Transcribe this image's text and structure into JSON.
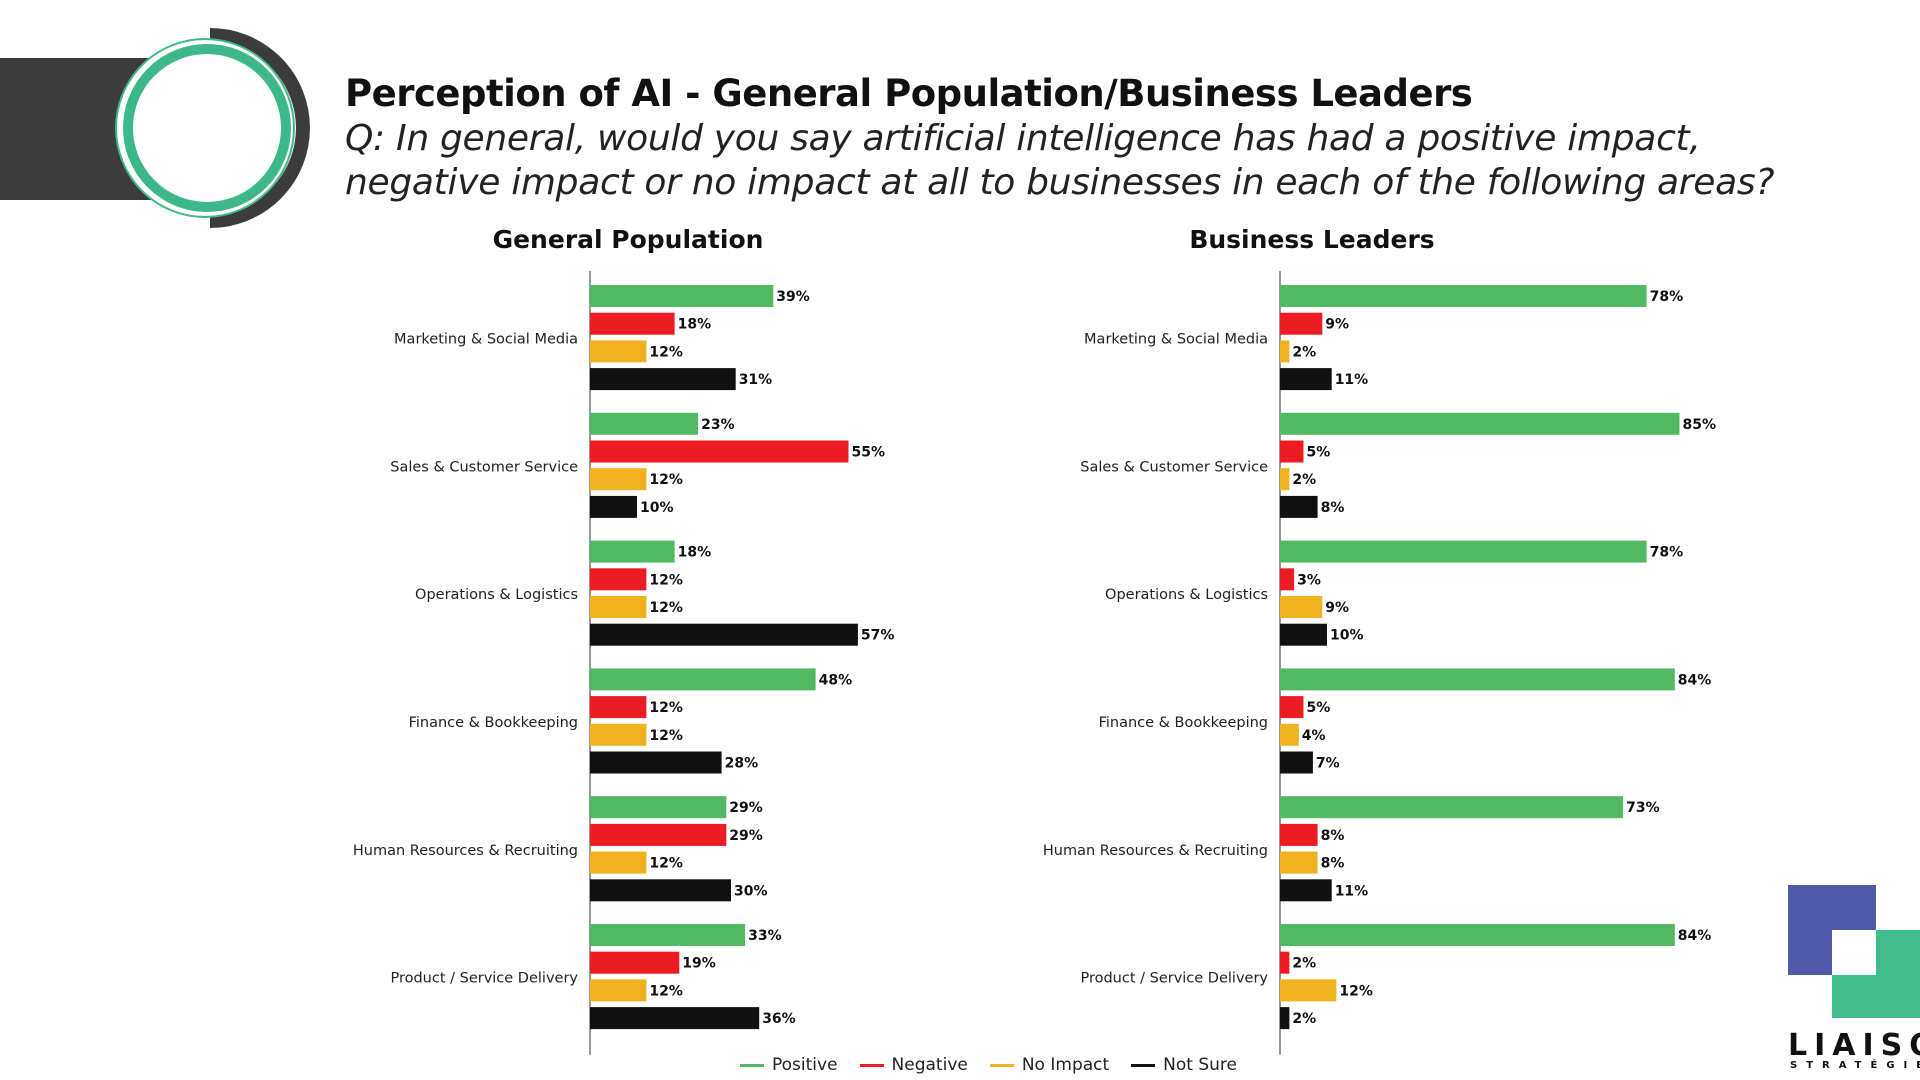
{
  "header": {
    "title": "Perception of AI - General Population/Business Leaders",
    "question": "Q: In general, would you say artificial intelligence has had a positive impact, negative impact or no impact at all to businesses in each of the following areas?"
  },
  "colors": {
    "positive": "#52B963",
    "negative": "#ED1C24",
    "no_impact": "#F2B11E",
    "not_sure": "#111111",
    "dark_bar": "#3C3C3C",
    "ring_green": "#3DB88A",
    "logo_purple": "#4F5BAA",
    "logo_green": "#40BD8C"
  },
  "legend": [
    {
      "label": "Positive",
      "color": "#52B963"
    },
    {
      "label": "Negative",
      "color": "#ED1C24"
    },
    {
      "label": "No Impact",
      "color": "#F2B11E"
    },
    {
      "label": "Not Sure",
      "color": "#111111"
    }
  ],
  "logo": {
    "name": "LIAISON",
    "sub": "STRATÉGIES"
  },
  "chart_data": [
    {
      "type": "bar",
      "orientation": "horizontal",
      "title": "General Population",
      "categories": [
        "Marketing & Social Media",
        "Sales & Customer Service",
        "Operations & Logistics",
        "Finance & Bookkeeping",
        "Human Resources & Recruiting",
        "Product / Service Delivery"
      ],
      "series": [
        {
          "name": "Positive",
          "values": [
            39,
            23,
            18,
            48,
            29,
            33
          ]
        },
        {
          "name": "Negative",
          "values": [
            18,
            55,
            12,
            12,
            29,
            19
          ]
        },
        {
          "name": "No Impact",
          "values": [
            12,
            12,
            12,
            12,
            12,
            12
          ]
        },
        {
          "name": "Not Sure",
          "values": [
            31,
            10,
            57,
            28,
            30,
            36
          ]
        }
      ],
      "value_suffix": "%"
    },
    {
      "type": "bar",
      "orientation": "horizontal",
      "title": "Business Leaders",
      "categories": [
        "Marketing & Social Media",
        "Sales & Customer Service",
        "Operations & Logistics",
        "Finance & Bookkeeping",
        "Human Resources & Recruiting",
        "Product / Service Delivery"
      ],
      "series": [
        {
          "name": "Positive",
          "values": [
            78,
            85,
            78,
            84,
            73,
            84
          ]
        },
        {
          "name": "Negative",
          "values": [
            9,
            5,
            3,
            5,
            8,
            2
          ]
        },
        {
          "name": "No Impact",
          "values": [
            2,
            2,
            9,
            4,
            8,
            12
          ]
        },
        {
          "name": "Not Sure",
          "values": [
            11,
            8,
            10,
            7,
            11,
            2
          ]
        }
      ],
      "value_suffix": "%"
    }
  ]
}
